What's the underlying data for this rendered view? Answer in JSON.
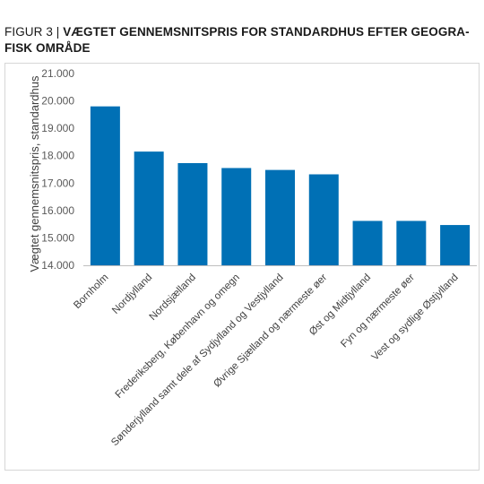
{
  "figure": {
    "prefix": "FIGUR 3 |",
    "title_line1": "VÆGTET GENNEMSNITSPRIS FOR STANDARDHUS EFTER GEOGRA-",
    "title_line2": "FISK OMRÅDE"
  },
  "chart_data": {
    "type": "bar",
    "title": "VÆGTET GENNEMSNITSPRIS FOR STANDARDHUS EFTER GEOGRAFISK OMRÅDE",
    "ylabel": "Vægtet gennemsnitspris, standardhus",
    "xlabel": "",
    "ylim": [
      14000,
      21000
    ],
    "yticks": [
      14000,
      15000,
      16000,
      17000,
      18000,
      19000,
      20000,
      21000
    ],
    "ytick_labels": [
      "14.000",
      "15.000",
      "16.000",
      "17.000",
      "18.000",
      "19.000",
      "20.000",
      "21.000"
    ],
    "categories": [
      "Bornholm",
      "Nordjylland",
      "Nordsjælland",
      "Frederiksberg, København og omegn",
      "Sønderjylland samt dele af Sydjylland og Vestjylland",
      "Øvrige Sjælland og nærmeste øer",
      "Øst og Midtjylland",
      "Fyn og nærmeste øer",
      "Vest og sydlige Østjylland"
    ],
    "values": [
      19800,
      18150,
      17730,
      17550,
      17480,
      17320,
      15620,
      15620,
      15470
    ],
    "bar_color": "#0070b5",
    "grid": false,
    "legend": "none"
  }
}
